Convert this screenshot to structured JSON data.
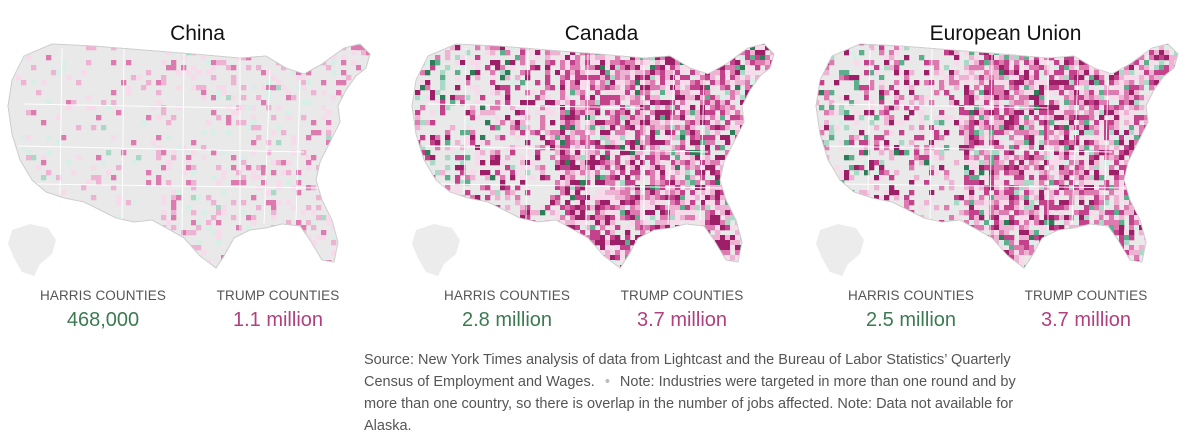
{
  "panels": [
    {
      "title": "China",
      "harris_label": "HARRIS COUNTIES",
      "harris_value": "468,000",
      "trump_label": "TRUMP COUNTIES",
      "trump_value": "1.1 million",
      "intensity": 0.25
    },
    {
      "title": "Canada",
      "harris_label": "HARRIS COUNTIES",
      "harris_value": "2.8 million",
      "trump_label": "TRUMP COUNTIES",
      "trump_value": "3.7 million",
      "intensity": 0.85
    },
    {
      "title": "European Union",
      "harris_label": "HARRIS COUNTIES",
      "harris_value": "2.5 million",
      "trump_label": "TRUMP COUNTIES",
      "trump_value": "3.7 million",
      "intensity": 0.8
    }
  ],
  "source": {
    "line1": "Source: New York Times analysis of data from Lightcast and the Bureau of Labor Statistics’ Quarterly Census of Employment and Wages.",
    "separator": "•",
    "line2": "Note: Industries were targeted in more than one round and by more than one country, so there is overlap in the number of jobs affected. Note: Data not available for Alaska."
  },
  "colors": {
    "land": "#e9e9e9",
    "border": "#b5b5b5",
    "harris_text": "#3c7a52",
    "trump_text": "#b0407e",
    "trump_shades": [
      "#f7dbeb",
      "#eeb3d3",
      "#dd7bb0",
      "#c4418b",
      "#9c1f68"
    ],
    "harris_shades": [
      "#d7efe6",
      "#a9d9c6",
      "#5cae8c",
      "#2f7d58"
    ]
  }
}
